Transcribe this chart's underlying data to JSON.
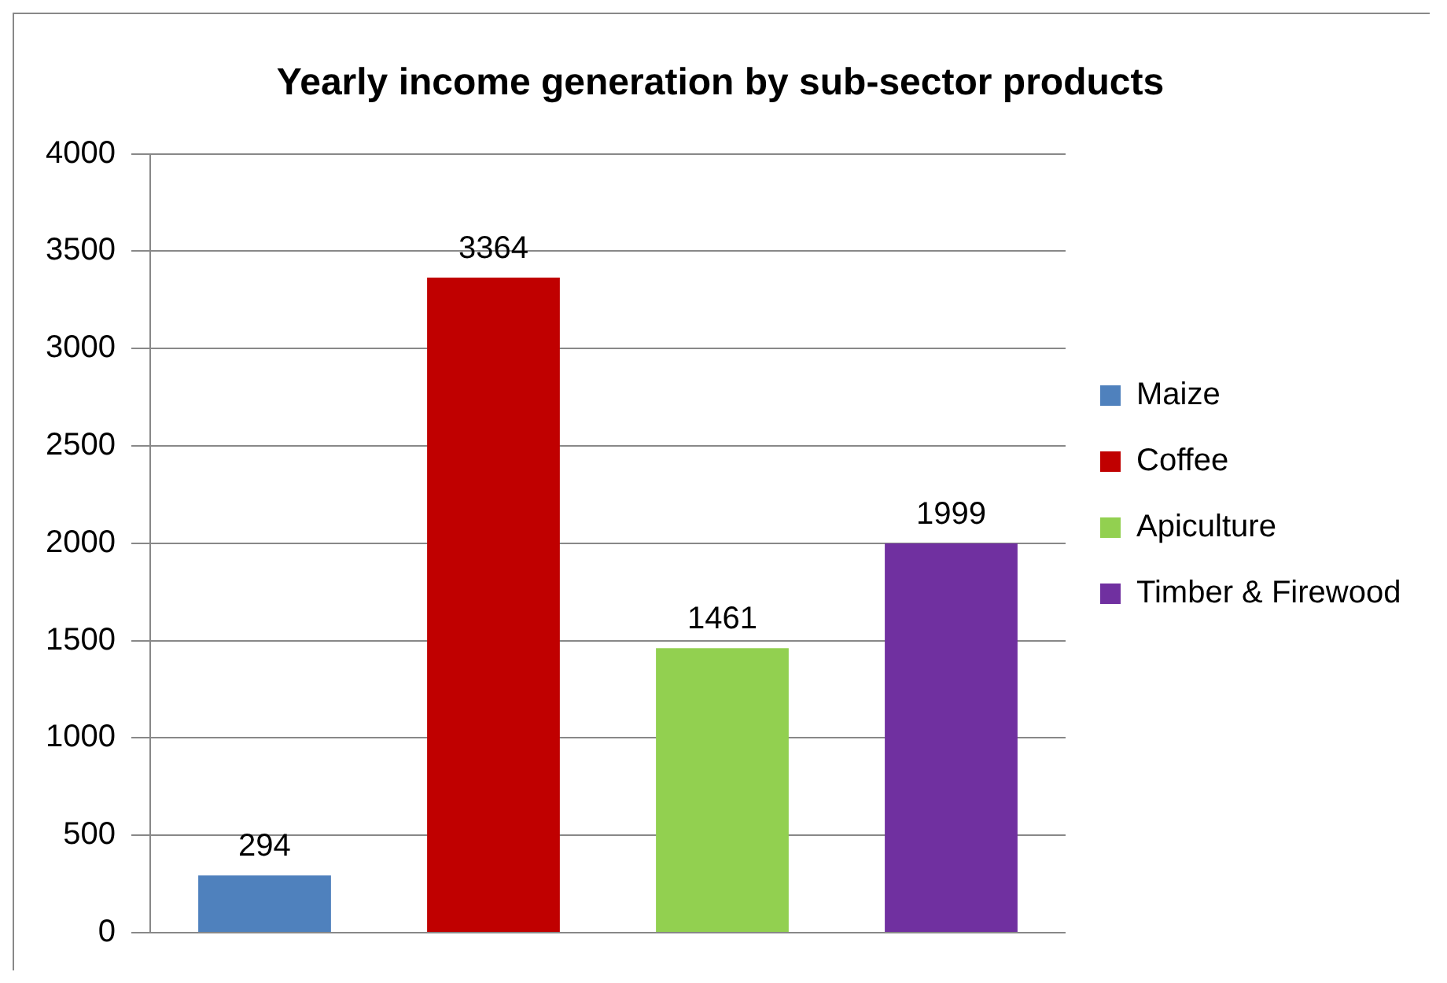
{
  "chart_data": {
    "type": "bar",
    "title": "Yearly income generation by sub-sector products",
    "categories": [
      null,
      null,
      null,
      null
    ],
    "series": [
      {
        "name": "Maize",
        "color": "#4f81bd",
        "values": [
          294,
          null,
          null,
          null
        ]
      },
      {
        "name": "Coffee",
        "color": "#c00000",
        "values": [
          null,
          3364,
          null,
          null
        ]
      },
      {
        "name": "Apiculture",
        "color": "#92d050",
        "values": [
          null,
          null,
          1461,
          null
        ]
      },
      {
        "name": "Timber & Firewood",
        "color": "#7030a0",
        "values": [
          null,
          null,
          null,
          1999
        ]
      }
    ],
    "ylim": [
      0,
      4000
    ],
    "yticks": [
      0,
      500,
      1000,
      1500,
      2000,
      2500,
      3000,
      3500,
      4000
    ],
    "grid": "y",
    "legend": "right",
    "data_labels": true
  }
}
